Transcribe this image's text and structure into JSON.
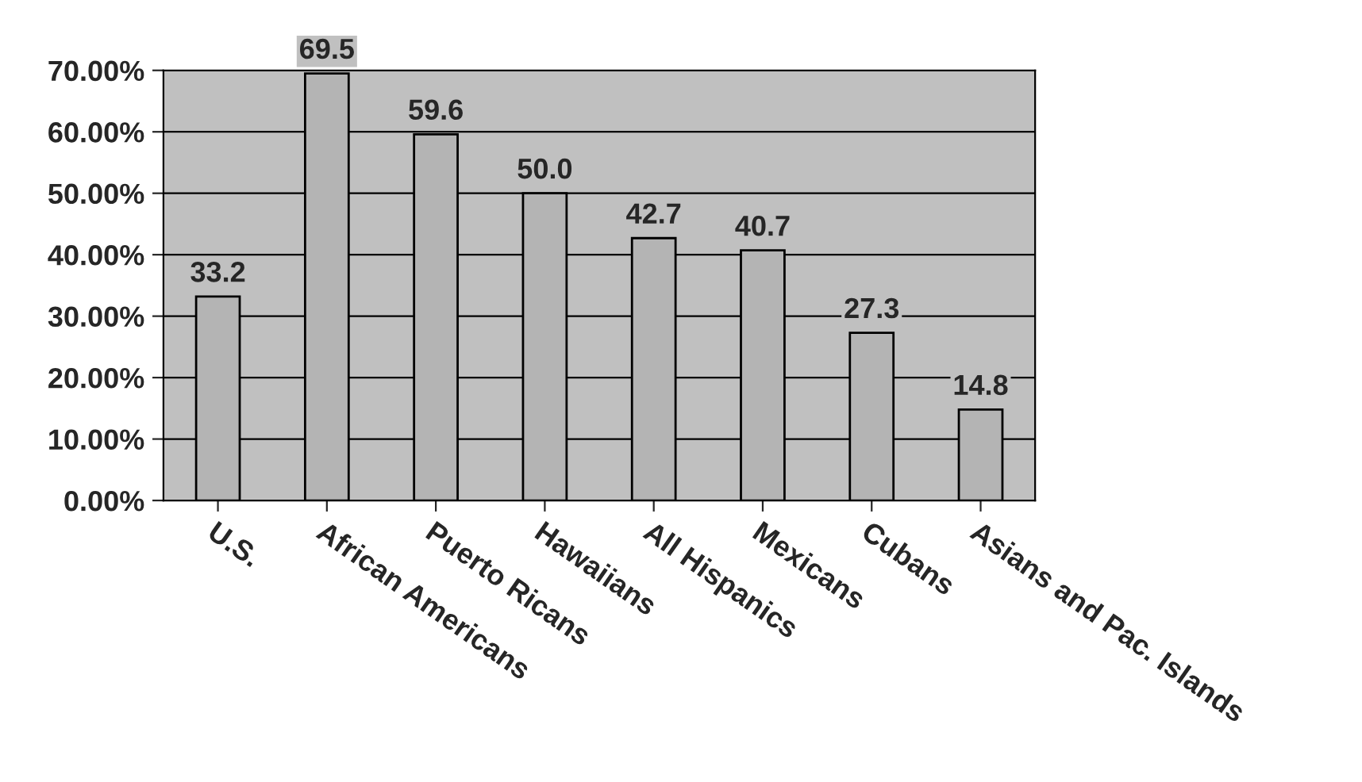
{
  "chart_data": {
    "type": "bar",
    "categories": [
      "U.S.",
      "African Americans",
      "Puerto Ricans",
      "Hawaiians",
      "All Hispanics",
      "Mexicans",
      "Cubans",
      "Asians and Pac. Islands"
    ],
    "values": [
      33.2,
      69.5,
      59.6,
      50.0,
      42.7,
      40.7,
      27.3,
      14.8
    ],
    "value_labels": [
      "33.2",
      "69.5",
      "59.6",
      "50.0",
      "42.7",
      "40.7",
      "27.3",
      "14.8"
    ],
    "color": "#b4b4b4",
    "ylim": [
      0,
      70
    ],
    "yticks": [
      {
        "value": 0,
        "label": "0.00%"
      },
      {
        "value": 10,
        "label": "10.00%"
      },
      {
        "value": 20,
        "label": "20.00%"
      },
      {
        "value": 30,
        "label": "30.00%"
      },
      {
        "value": 40,
        "label": "40.00%"
      },
      {
        "value": 50,
        "label": "50.00%"
      },
      {
        "value": 60,
        "label": "60.00%"
      },
      {
        "value": 70,
        "label": "70.00%"
      }
    ],
    "grid": "y"
  }
}
